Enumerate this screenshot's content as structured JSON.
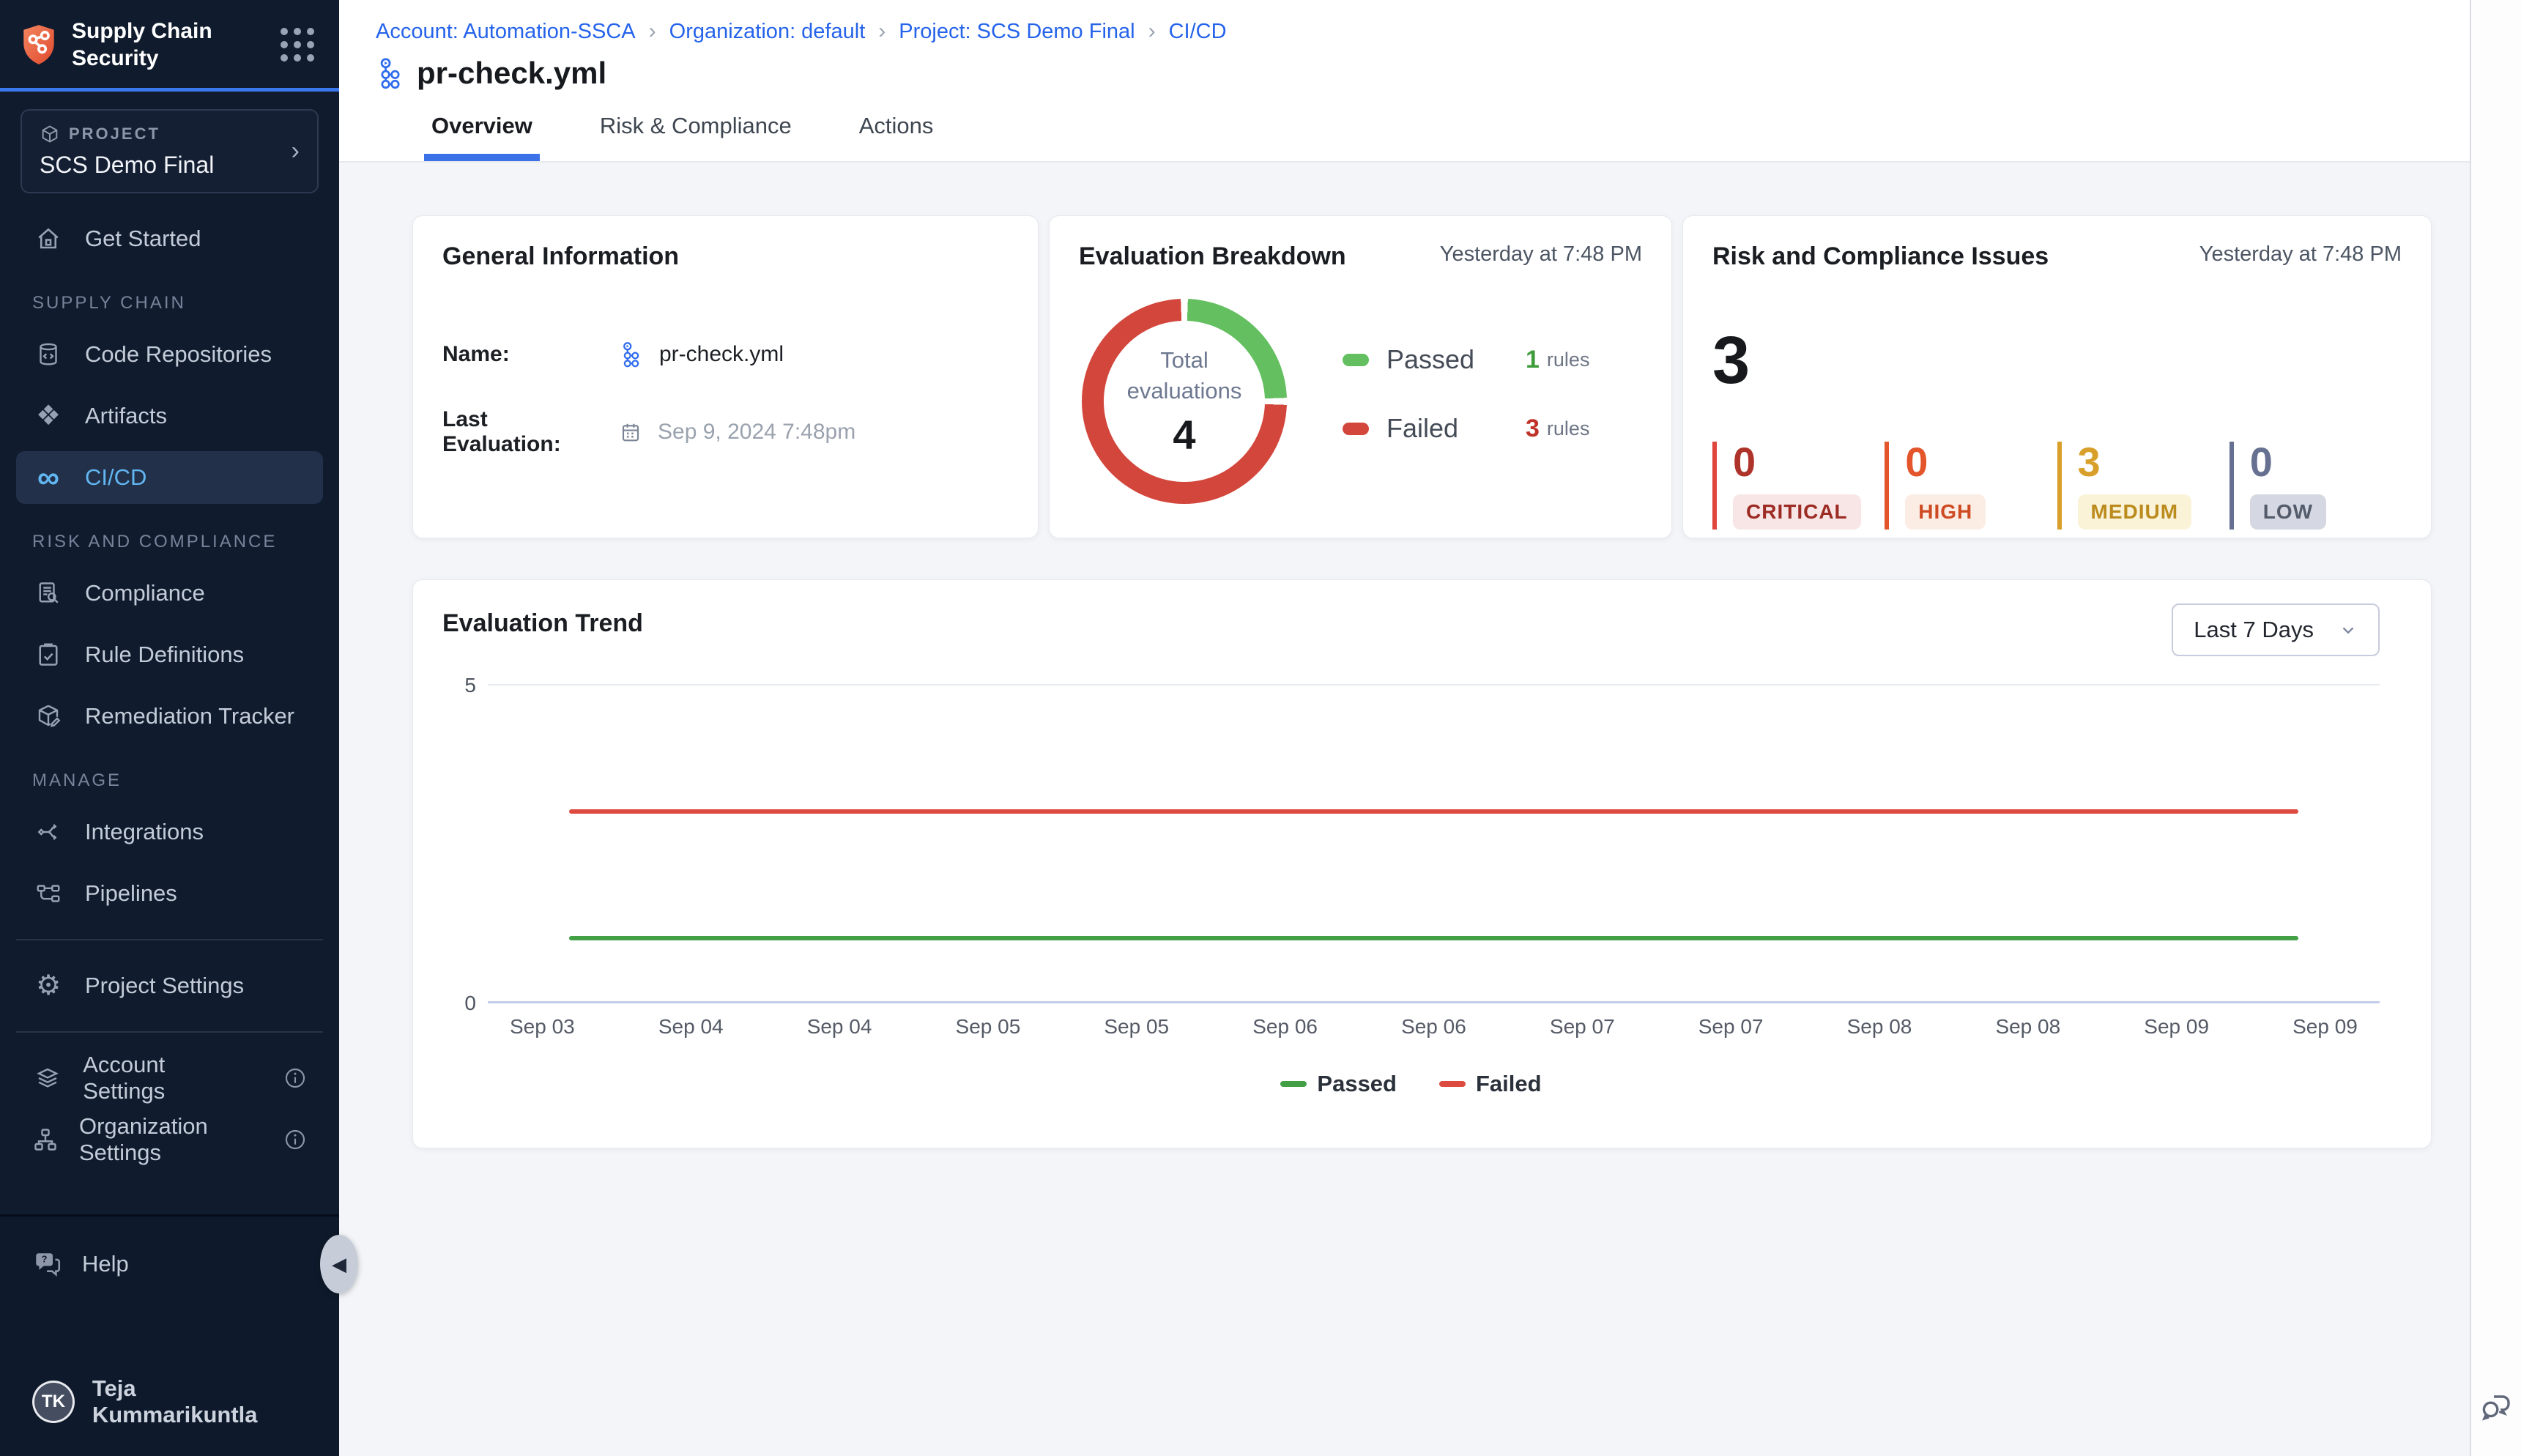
{
  "app": {
    "name": "Supply Chain Security"
  },
  "sidebar": {
    "project": {
      "eyebrow": "PROJECT",
      "name": "SCS Demo Final"
    },
    "primary": [
      {
        "label": "Get Started"
      }
    ],
    "sections": [
      {
        "title": "SUPPLY CHAIN",
        "items": [
          {
            "label": "Code Repositories"
          },
          {
            "label": "Artifacts"
          },
          {
            "label": "CI/CD",
            "active": true
          }
        ]
      },
      {
        "title": "RISK AND COMPLIANCE",
        "items": [
          {
            "label": "Compliance"
          },
          {
            "label": "Rule Definitions"
          },
          {
            "label": "Remediation Tracker"
          }
        ]
      },
      {
        "title": "MANAGE",
        "items": [
          {
            "label": "Integrations"
          },
          {
            "label": "Pipelines"
          }
        ]
      }
    ],
    "footer": {
      "project_settings": "Project Settings",
      "account_settings": "Account Settings",
      "organization_settings": "Organization Settings",
      "help": "Help",
      "user_name": "Teja Kummarikuntla",
      "user_initials": "TK"
    }
  },
  "header": {
    "breadcrumbs": [
      {
        "label": "Account: Automation-SSCA"
      },
      {
        "label": "Organization: default"
      },
      {
        "label": "Project: SCS Demo Final"
      },
      {
        "label": "CI/CD"
      }
    ],
    "title": "pr-check.yml",
    "tabs": [
      {
        "label": "Overview",
        "active": true
      },
      {
        "label": "Risk & Compliance",
        "active": false
      },
      {
        "label": "Actions",
        "active": false
      }
    ]
  },
  "cards": {
    "general_information": {
      "title": "General Information",
      "name_label": "Name:",
      "name_value": "pr-check.yml",
      "last_eval_label": "Last Evaluation:",
      "last_eval_value": "Sep 9, 2024 7:48pm"
    },
    "evaluation_breakdown": {
      "title": "Evaluation Breakdown",
      "timestamp": "Yesterday at 7:48 PM",
      "center_label": "Total evaluations",
      "total": "4",
      "passed_rules": 1,
      "failed_rules": 3,
      "legend": [
        {
          "name": "Passed",
          "count": "1",
          "unit": "rules",
          "swatch_color": "#63bf5f",
          "count_color": "#3f9d3b"
        },
        {
          "name": "Failed",
          "count": "3",
          "unit": "rules",
          "swatch_color": "#d3463c",
          "count_color": "#c03227"
        }
      ]
    },
    "risk_issues": {
      "title": "Risk and Compliance Issues",
      "timestamp": "Yesterday at 7:48 PM",
      "total": "3",
      "severities": [
        {
          "label": "CRITICAL",
          "count": "0",
          "bar_color": "#e0453c",
          "num_color": "#ae332a",
          "badge_bg": "#f8e6e6",
          "badge_text": "#9c2b23"
        },
        {
          "label": "HIGH",
          "count": "0",
          "bar_color": "#e4552c",
          "num_color": "#e4552c",
          "badge_bg": "#fcede4",
          "badge_text": "#ce4a22"
        },
        {
          "label": "MEDIUM",
          "count": "3",
          "bar_color": "#d8a02a",
          "num_color": "#d8a02a",
          "badge_bg": "#faf3d8",
          "badge_text": "#bb8b1d"
        },
        {
          "label": "LOW",
          "count": "0",
          "bar_color": "#667090",
          "num_color": "#667090",
          "badge_bg": "#d5d8e2",
          "badge_text": "#545b6b"
        }
      ]
    },
    "evaluation_trend": {
      "title": "Evaluation Trend",
      "range_selector": "Last 7 Days"
    }
  },
  "chart_data": {
    "type": "line",
    "title": "Evaluation Trend",
    "x_labels": [
      "Sep 03",
      "Sep 04",
      "Sep 04",
      "Sep 05",
      "Sep 05",
      "Sep 06",
      "Sep 06",
      "Sep 07",
      "Sep 07",
      "Sep 08",
      "Sep 08",
      "Sep 09",
      "Sep 09"
    ],
    "series": [
      {
        "name": "Passed",
        "color": "#43a047",
        "values": [
          1,
          1,
          1,
          1,
          1,
          1,
          1,
          1,
          1,
          1,
          1,
          1,
          1
        ]
      },
      {
        "name": "Failed",
        "color": "#dd4b40",
        "values": [
          3,
          3,
          3,
          3,
          3,
          3,
          3,
          3,
          3,
          3,
          3,
          3,
          3
        ]
      }
    ],
    "ylim": [
      0,
      5
    ],
    "yticks": [
      5,
      0
    ],
    "grid": "top-line-only",
    "legend_position": "bottom"
  },
  "theme": {
    "sidebar_bg": "#101c2e",
    "active_item_bg": "#223049",
    "active_item_text": "#62b6f1",
    "accent_blue": "#3b72e8",
    "link_blue": "#2563eb",
    "content_bg": "#f3f5f8",
    "donut_green": "#63bf5f",
    "donut_red": "#d3463c"
  }
}
